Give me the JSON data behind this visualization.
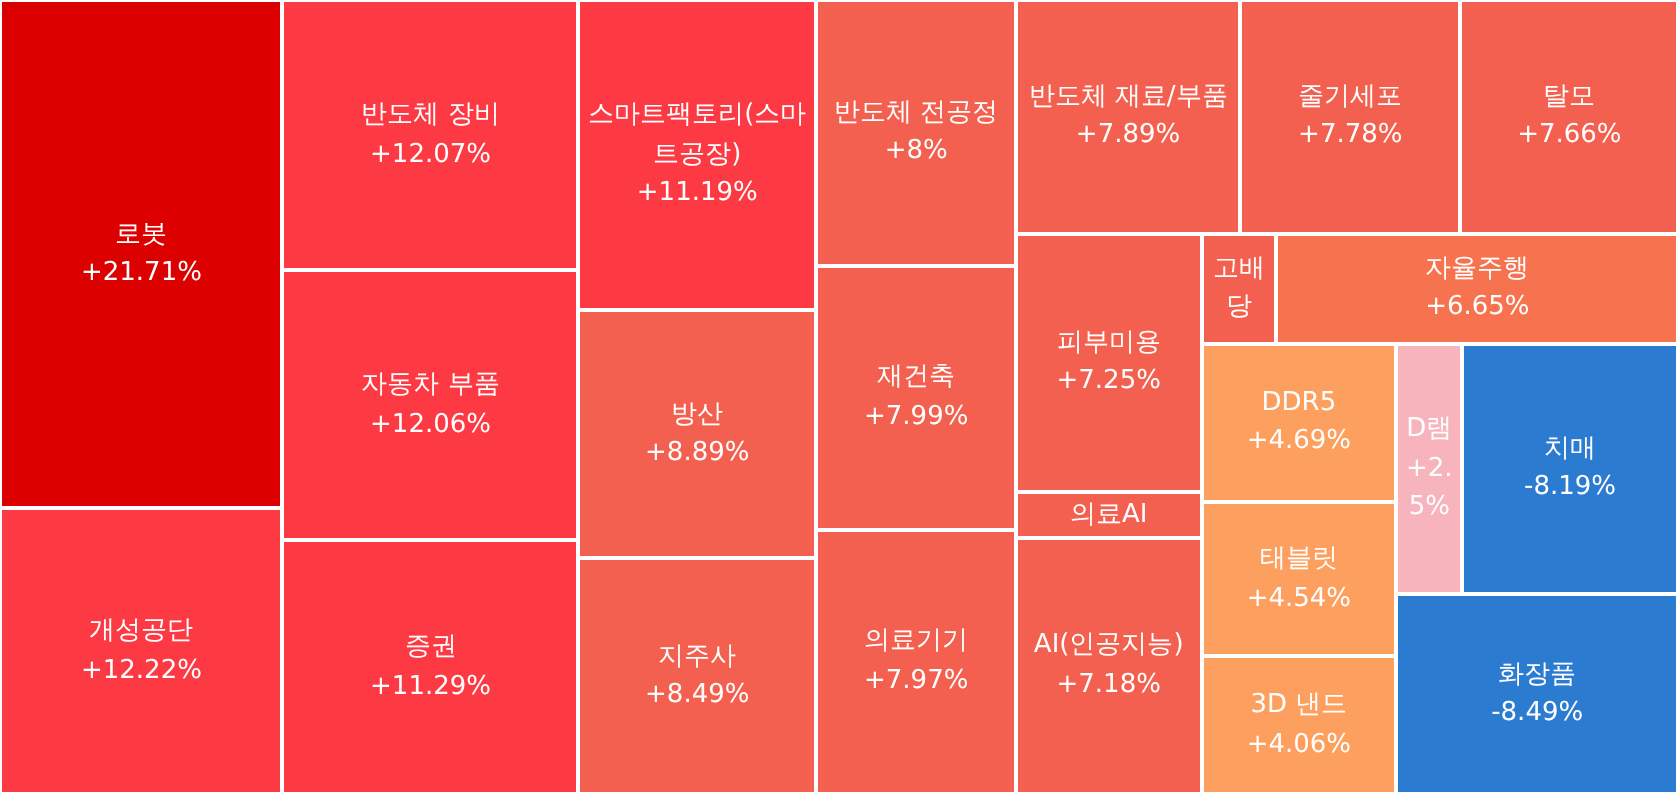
{
  "chart_data": {
    "type": "other",
    "categories": [
      "로봇",
      "개성공단",
      "반도체 장비",
      "자동차 부품",
      "증권",
      "스마트팩토리(스마트공장)",
      "방산",
      "지주사",
      "반도체 전공정",
      "재건축",
      "의료기기",
      "반도체 재료/부품",
      "줄기세포",
      "탈모",
      "피부미용",
      "의료AI",
      "AI(인공지능)",
      "고배당",
      "자율주행",
      "DDR5",
      "태블릿",
      "3D 낸드",
      "D램",
      "치매",
      "화장품"
    ],
    "values": [
      21.71,
      12.22,
      12.07,
      12.06,
      11.29,
      11.19,
      8.89,
      8.49,
      8,
      7.99,
      7.97,
      7.89,
      7.78,
      7.66,
      7.25,
      null,
      7.18,
      null,
      6.65,
      4.69,
      4.54,
      4.06,
      2.5,
      -8.19,
      -8.49
    ],
    "value_labels": [
      "+21.71%",
      "+12.22%",
      "+12.07%",
      "+12.06%",
      "+11.29%",
      "+11.19%",
      "+8.89%",
      "+8.49%",
      "+8%",
      "+7.99%",
      "+7.97%",
      "+7.89%",
      "+7.78%",
      "+7.66%",
      "+7.25%",
      null,
      "+7.18%",
      null,
      "+6.65%",
      "+4.69%",
      "+4.54%",
      "+4.06%",
      "+2.5%",
      "-8.19%",
      "-8.49%"
    ],
    "colors": [
      "#dd0000",
      "#fd3a44",
      "#fd3a44",
      "#fd3a44",
      "#fd3a44",
      "#fd3a44",
      "#f4604f",
      "#f4604f",
      "#f4604f",
      "#f4604f",
      "#f4604f",
      "#f4604f",
      "#f4604f",
      "#f4604f",
      "#f4604f",
      "#f4604f",
      "#f4604f",
      "#f4604f",
      "#f7734f",
      "#fd9f5e",
      "#fd9f5e",
      "#fd9f5e",
      "#f7b4bc",
      "#2b7bd1",
      "#2b7bd1"
    ]
  }
}
